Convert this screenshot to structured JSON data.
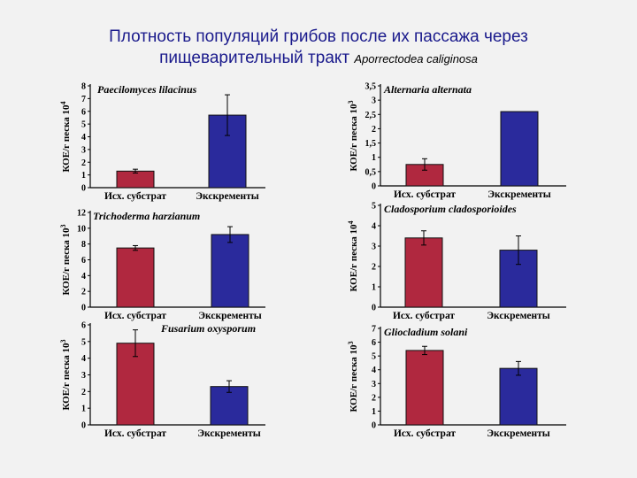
{
  "page_title_line1": "Плотность популяций грибов после их пассажа через",
  "page_title_line2": "пищеварительный тракт",
  "page_title_species": "Aporrectodea caliginosa",
  "colors": {
    "substrate": "#b0283f",
    "excrement": "#2a2a9c",
    "title": "#1a1a8c"
  },
  "chart_data": [
    {
      "type": "bar",
      "title": "Paecilomyces lilacinus",
      "ylabel": "КОЕ/г песка 10",
      "yexp": "4",
      "categories": [
        "Исх. субстрат",
        "Экскременты"
      ],
      "values": [
        1.3,
        5.7
      ],
      "errors": [
        0.15,
        1.6
      ],
      "ylim": [
        0,
        8
      ],
      "ticks": [
        "0",
        "1",
        "2",
        "3",
        "4",
        "5",
        "6",
        "7",
        "8"
      ]
    },
    {
      "type": "bar",
      "title": "Alternaria alternata",
      "ylabel": "КОЕ/г песка 10",
      "yexp": "3",
      "categories": [
        "Исх. субстрат",
        "Экскременты"
      ],
      "values": [
        0.75,
        2.6
      ],
      "errors": [
        0.2,
        0
      ],
      "ylim": [
        0,
        3.5
      ],
      "ticks": [
        "0",
        "0,5",
        "1",
        "1,5",
        "2",
        "2,5",
        "3",
        "3,5"
      ]
    },
    {
      "type": "bar",
      "title": "Trichoderma harzianum",
      "ylabel": "КОЕ/г песка 10",
      "yexp": "3",
      "categories": [
        "Исх. субстрат",
        "Экскременты"
      ],
      "values": [
        7.5,
        9.2
      ],
      "errors": [
        0.3,
        1.0
      ],
      "ylim": [
        0,
        12
      ],
      "ticks": [
        "0",
        "2",
        "4",
        "6",
        "8",
        "10",
        "12"
      ]
    },
    {
      "type": "bar",
      "title": "Cladosporium cladosporioides",
      "ylabel": "КОЕ/г песка 10",
      "yexp": "4",
      "categories": [
        "Исх. субстрат",
        "Экскременты"
      ],
      "values": [
        3.4,
        2.8
      ],
      "errors": [
        0.35,
        0.7
      ],
      "ylim": [
        0,
        5
      ],
      "ticks": [
        "0",
        "1",
        "2",
        "3",
        "4",
        "5"
      ]
    },
    {
      "type": "bar",
      "title": "Fusarium oxysporum",
      "ylabel": "КОЕ/г песка 10",
      "yexp": "3",
      "categories": [
        "Исх. субстрат",
        "Экскременты"
      ],
      "values": [
        4.9,
        2.3
      ],
      "errors": [
        0.8,
        0.35
      ],
      "ylim": [
        0,
        6
      ],
      "ticks": [
        "0",
        "1",
        "2",
        "3",
        "4",
        "5",
        "6"
      ]
    },
    {
      "type": "bar",
      "title": "Gliocladium solani",
      "ylabel": "КОЕ/г песка 10",
      "yexp": "3",
      "categories": [
        "Исх. субстрат",
        "Экскременты"
      ],
      "values": [
        5.4,
        4.1
      ],
      "errors": [
        0.3,
        0.5
      ],
      "ylim": [
        0,
        7
      ],
      "ticks": [
        "0",
        "1",
        "2",
        "3",
        "4",
        "5",
        "6",
        "7"
      ]
    }
  ]
}
